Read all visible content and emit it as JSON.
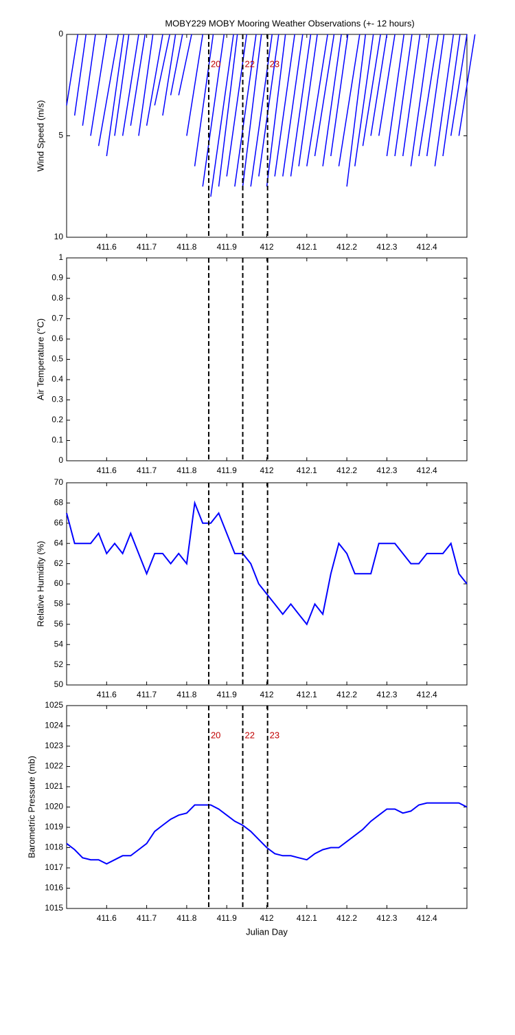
{
  "chart_data": [
    {
      "type": "stick",
      "title": "MOBY229 MOBY Mooring Weather Observations (+- 12 hours)",
      "ylabel": "Wind Speed (m/s)",
      "x": [
        411.5,
        411.52,
        411.54,
        411.56,
        411.58,
        411.6,
        411.62,
        411.64,
        411.66,
        411.68,
        411.7,
        411.72,
        411.74,
        411.76,
        411.78,
        411.8,
        411.82,
        411.84,
        411.86,
        411.88,
        411.9,
        411.92,
        411.94,
        411.96,
        411.98,
        412.0,
        412.02,
        412.04,
        412.06,
        412.08,
        412.1,
        412.12,
        412.14,
        412.16,
        412.18,
        412.2,
        412.22,
        412.24,
        412.26,
        412.28,
        412.3,
        412.32,
        412.34,
        412.36,
        412.38,
        412.4,
        412.42,
        412.44,
        412.46,
        412.48
      ],
      "values": [
        3.5,
        4,
        4.5,
        5,
        5.5,
        6,
        5,
        5,
        4.5,
        5,
        4.5,
        3.5,
        4,
        3,
        3,
        5,
        6.5,
        7.5,
        8,
        7.5,
        7,
        7.5,
        7.5,
        7.5,
        7,
        7.5,
        7,
        7,
        7,
        6.5,
        6.5,
        6,
        6.5,
        6,
        6.5,
        7.5,
        6.5,
        5.5,
        5,
        5,
        6,
        6,
        6,
        6.5,
        6,
        6,
        6.5,
        6,
        5,
        5
      ],
      "direction": [
        9,
        8,
        8,
        9,
        10,
        8,
        8,
        9,
        9,
        8,
        10,
        12,
        9,
        11,
        12,
        9,
        8,
        8,
        8,
        7,
        8,
        8,
        7,
        8,
        8,
        7,
        8,
        8,
        8,
        8,
        9,
        9,
        8,
        8,
        9,
        7,
        8,
        9,
        9,
        9,
        8,
        8,
        8,
        8,
        9,
        8,
        8,
        8,
        9,
        9
      ],
      "color": "#0000ff",
      "xlim": [
        411.5,
        412.5
      ],
      "xticks": [
        411.6,
        411.7,
        411.8,
        411.9,
        412,
        412.1,
        412.2,
        412.3,
        412.4
      ],
      "ylim": [
        0,
        10
      ],
      "yticks": [
        0,
        5,
        10
      ],
      "inverted": true,
      "events": [
        {
          "x": 411.855,
          "label": "20"
        },
        {
          "x": 411.94,
          "label": "22"
        },
        {
          "x": 412.002,
          "label": "23"
        }
      ]
    },
    {
      "type": "line",
      "ylabel": "Air Temperature (°C)",
      "x": [],
      "values": [],
      "color": "#0000ff",
      "xlim": [
        411.5,
        412.5
      ],
      "xticks": [
        411.6,
        411.7,
        411.8,
        411.9,
        412,
        412.1,
        412.2,
        412.3,
        412.4
      ],
      "ylim": [
        0,
        1
      ],
      "yticks": [
        0,
        0.1,
        0.2,
        0.3,
        0.4,
        0.5,
        0.6,
        0.7,
        0.8,
        0.9,
        1
      ]
    },
    {
      "type": "line",
      "ylabel": "Relative Humidity (%)",
      "x": [
        411.5,
        411.52,
        411.54,
        411.56,
        411.58,
        411.6,
        411.62,
        411.64,
        411.66,
        411.68,
        411.7,
        411.72,
        411.74,
        411.76,
        411.78,
        411.8,
        411.82,
        411.84,
        411.86,
        411.88,
        411.9,
        411.92,
        411.94,
        411.96,
        411.98,
        412.0,
        412.02,
        412.04,
        412.06,
        412.08,
        412.1,
        412.12,
        412.14,
        412.16,
        412.18,
        412.2,
        412.22,
        412.24,
        412.26,
        412.28,
        412.3,
        412.32,
        412.34,
        412.36,
        412.38,
        412.4,
        412.42,
        412.44,
        412.46,
        412.48,
        412.5
      ],
      "values": [
        67,
        64,
        64,
        64,
        65,
        63,
        64,
        63,
        65,
        63,
        61,
        63,
        63,
        62,
        63,
        62,
        68,
        66,
        66,
        67,
        65,
        63,
        63,
        62,
        60,
        59,
        58,
        57,
        58,
        57,
        56,
        58,
        57,
        61,
        64,
        63,
        61,
        61,
        61,
        64,
        64,
        64,
        63,
        62,
        62,
        63,
        63,
        63,
        64,
        61,
        60
      ],
      "color": "#0000ff",
      "xlim": [
        411.5,
        412.5
      ],
      "xticks": [
        411.6,
        411.7,
        411.8,
        411.9,
        412,
        412.1,
        412.2,
        412.3,
        412.4
      ],
      "ylim": [
        50,
        70
      ],
      "yticks": [
        50,
        52,
        54,
        56,
        58,
        60,
        62,
        64,
        66,
        68,
        70
      ]
    },
    {
      "type": "line",
      "ylabel": "Barometric Pressure (mb)",
      "xlabel": "Julian Day",
      "x": [
        411.5,
        411.52,
        411.54,
        411.56,
        411.58,
        411.6,
        411.62,
        411.64,
        411.66,
        411.68,
        411.7,
        411.72,
        411.74,
        411.76,
        411.78,
        411.8,
        411.82,
        411.84,
        411.86,
        411.88,
        411.9,
        411.92,
        411.94,
        411.96,
        411.98,
        412.0,
        412.02,
        412.04,
        412.06,
        412.08,
        412.1,
        412.12,
        412.14,
        412.16,
        412.18,
        412.2,
        412.22,
        412.24,
        412.26,
        412.28,
        412.3,
        412.32,
        412.34,
        412.36,
        412.38,
        412.4,
        412.42,
        412.44,
        412.46,
        412.48,
        412.5
      ],
      "values": [
        1018.2,
        1017.9,
        1017.5,
        1017.4,
        1017.4,
        1017.2,
        1017.4,
        1017.6,
        1017.6,
        1017.9,
        1018.2,
        1018.8,
        1019.1,
        1019.4,
        1019.6,
        1019.7,
        1020.1,
        1020.1,
        1020.1,
        1019.9,
        1019.6,
        1019.3,
        1019.1,
        1018.8,
        1018.4,
        1018.0,
        1017.7,
        1017.6,
        1017.6,
        1017.5,
        1017.4,
        1017.7,
        1017.9,
        1018.0,
        1018.0,
        1018.3,
        1018.6,
        1018.9,
        1019.3,
        1019.6,
        1019.9,
        1019.9,
        1019.7,
        1019.8,
        1020.1,
        1020.2,
        1020.2,
        1020.2,
        1020.2,
        1020.2,
        1020.0
      ],
      "color": "#0000ff",
      "xlim": [
        411.5,
        412.5
      ],
      "xticks": [
        411.6,
        411.7,
        411.8,
        411.9,
        412,
        412.1,
        412.2,
        412.3,
        412.4
      ],
      "ylim": [
        1015,
        1025
      ],
      "yticks": [
        1015,
        1016,
        1017,
        1018,
        1019,
        1020,
        1021,
        1022,
        1023,
        1024,
        1025
      ]
    }
  ]
}
